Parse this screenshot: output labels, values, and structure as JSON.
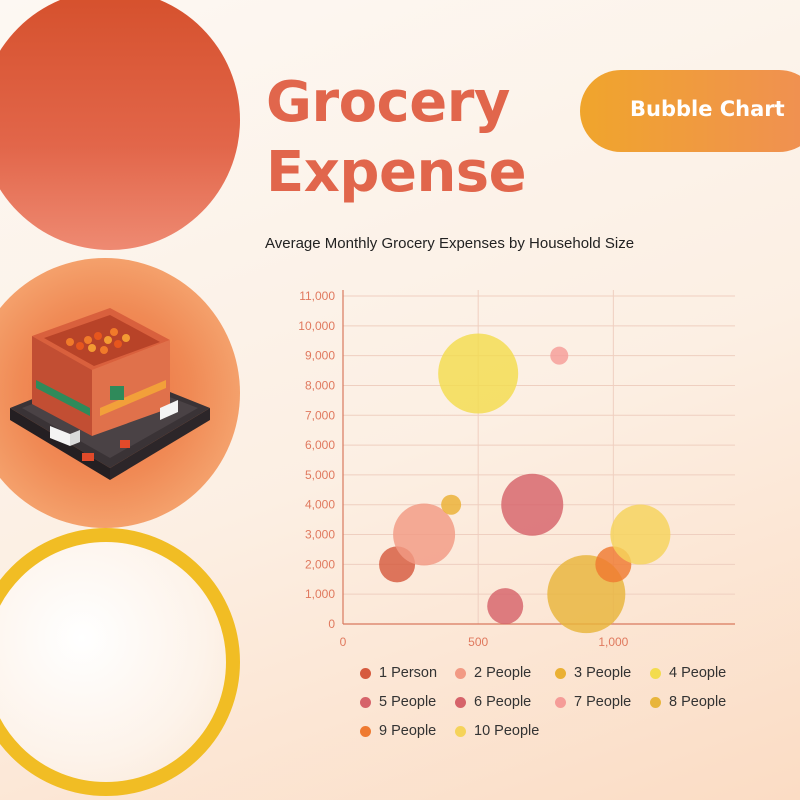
{
  "header": {
    "title_line1": "Grocery",
    "title_line2": "Expense",
    "badge": "Bubble Chart"
  },
  "chart_data": {
    "type": "bubble",
    "title": "Average Monthly Grocery Expenses by Household Size",
    "xlim": [
      0,
      1450
    ],
    "ylim": [
      0,
      11000
    ],
    "x_ticks": [
      "0",
      "500",
      "1,000"
    ],
    "x_tick_values": [
      0,
      500,
      1000
    ],
    "y_ticks": [
      "0",
      "1,000",
      "2,000",
      "3,000",
      "4,000",
      "5,000",
      "6,000",
      "7,000",
      "8,000",
      "9,000",
      "10,000",
      "11,000"
    ],
    "y_tick_values": [
      0,
      1000,
      2000,
      3000,
      4000,
      5000,
      6000,
      7000,
      8000,
      9000,
      10000,
      11000
    ],
    "grid": true,
    "legend_position": "bottom",
    "series": [
      {
        "name": "1 Person",
        "color": "#d65a3e",
        "x": 200,
        "y": 2000,
        "size": 18
      },
      {
        "name": "2 People",
        "color": "#f29a84",
        "x": 300,
        "y": 3000,
        "size": 31
      },
      {
        "name": "3 People",
        "color": "#eab033",
        "x": 400,
        "y": 4000,
        "size": 10
      },
      {
        "name": "4 People",
        "color": "#f3dc4e",
        "x": 500,
        "y": 8400,
        "size": 40
      },
      {
        "name": "5 People",
        "color": "#d6636a",
        "x": 700,
        "y": 4000,
        "size": 31
      },
      {
        "name": "6 People",
        "color": "#d6636a",
        "x": 600,
        "y": 600,
        "size": 18
      },
      {
        "name": "7 People",
        "color": "#f59c98",
        "x": 800,
        "y": 9000,
        "size": 9
      },
      {
        "name": "8 People",
        "color": "#e8b53b",
        "x": 900,
        "y": 1000,
        "size": 39
      },
      {
        "name": "9 People",
        "color": "#ef7a31",
        "x": 1000,
        "y": 2000,
        "size": 18
      },
      {
        "name": "10 People",
        "color": "#f5d35a",
        "x": 1100,
        "y": 3000,
        "size": 30
      }
    ]
  }
}
